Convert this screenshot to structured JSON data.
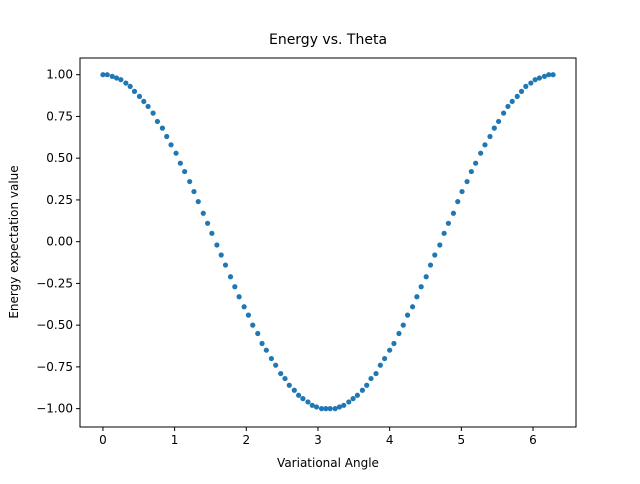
{
  "chart_data": {
    "type": "scatter",
    "title": "Energy vs. Theta",
    "x_label": "Variational Angle",
    "y_label": "Energy expectation value",
    "color": "#1f77b4",
    "xlim": [
      -0.32,
      6.6
    ],
    "ylim": [
      -1.11,
      1.1
    ],
    "xticks": [
      0,
      1,
      2,
      3,
      4,
      5,
      6
    ],
    "yticks": [
      {
        "value": -1.0,
        "label": "−1.00"
      },
      {
        "value": -0.75,
        "label": "−0.75"
      },
      {
        "value": -0.5,
        "label": "−0.50"
      },
      {
        "value": -0.25,
        "label": "−0.25"
      },
      {
        "value": 0.0,
        "label": "0.00"
      },
      {
        "value": 0.25,
        "label": "0.25"
      },
      {
        "value": 0.5,
        "label": "0.50"
      },
      {
        "value": 0.75,
        "label": "0.75"
      },
      {
        "value": 1.0,
        "label": "1.00"
      }
    ],
    "x": [
      0.0,
      0.06,
      0.13,
      0.19,
      0.25,
      0.32,
      0.38,
      0.44,
      0.51,
      0.57,
      0.63,
      0.7,
      0.76,
      0.83,
      0.89,
      0.95,
      1.02,
      1.08,
      1.14,
      1.21,
      1.27,
      1.33,
      1.4,
      1.46,
      1.52,
      1.59,
      1.65,
      1.71,
      1.78,
      1.84,
      1.9,
      1.97,
      2.03,
      2.09,
      2.16,
      2.22,
      2.28,
      2.35,
      2.41,
      2.48,
      2.54,
      2.6,
      2.67,
      2.73,
      2.79,
      2.86,
      2.92,
      2.98,
      3.05,
      3.11,
      3.17,
      3.24,
      3.3,
      3.36,
      3.43,
      3.49,
      3.55,
      3.62,
      3.68,
      3.74,
      3.81,
      3.87,
      3.93,
      4.0,
      4.06,
      4.13,
      4.19,
      4.25,
      4.32,
      4.38,
      4.44,
      4.51,
      4.57,
      4.63,
      4.7,
      4.76,
      4.82,
      4.89,
      4.95,
      5.01,
      5.08,
      5.14,
      5.2,
      5.27,
      5.33,
      5.4,
      5.46,
      5.52,
      5.59,
      5.65,
      5.71,
      5.78,
      5.84,
      5.9,
      5.97,
      6.03,
      6.09,
      6.16,
      6.22,
      6.28
    ],
    "values": [
      1.0,
      1.0,
      0.99,
      0.98,
      0.97,
      0.95,
      0.93,
      0.9,
      0.87,
      0.84,
      0.81,
      0.77,
      0.72,
      0.68,
      0.63,
      0.58,
      0.53,
      0.47,
      0.42,
      0.36,
      0.3,
      0.24,
      0.17,
      0.11,
      0.05,
      -0.02,
      -0.08,
      -0.14,
      -0.21,
      -0.27,
      -0.33,
      -0.39,
      -0.44,
      -0.5,
      -0.55,
      -0.61,
      -0.65,
      -0.7,
      -0.74,
      -0.79,
      -0.82,
      -0.86,
      -0.89,
      -0.92,
      -0.94,
      -0.96,
      -0.98,
      -0.99,
      -1.0,
      -1.0,
      -1.0,
      -1.0,
      -0.99,
      -0.98,
      -0.96,
      -0.94,
      -0.92,
      -0.89,
      -0.86,
      -0.82,
      -0.79,
      -0.74,
      -0.7,
      -0.65,
      -0.61,
      -0.55,
      -0.5,
      -0.44,
      -0.39,
      -0.33,
      -0.27,
      -0.21,
      -0.14,
      -0.08,
      -0.02,
      0.05,
      0.11,
      0.17,
      0.24,
      0.3,
      0.36,
      0.42,
      0.47,
      0.53,
      0.58,
      0.63,
      0.68,
      0.72,
      0.77,
      0.81,
      0.84,
      0.87,
      0.9,
      0.93,
      0.95,
      0.97,
      0.98,
      0.99,
      1.0,
      1.0
    ]
  }
}
